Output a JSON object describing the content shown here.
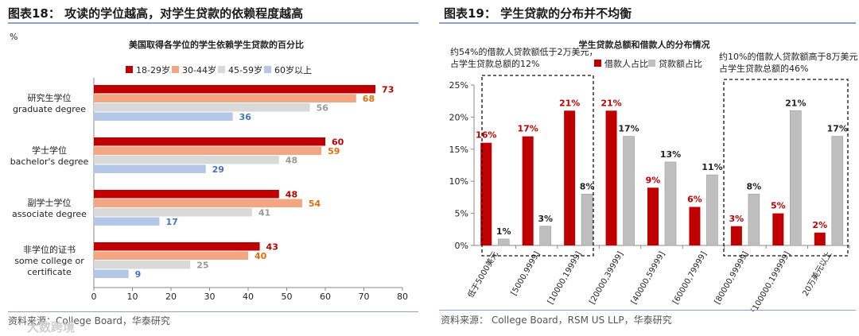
{
  "left": {
    "title": "图表18：  攻读的学位越高，对学生贷款的依赖程度越高",
    "source": "资料来源：College Board，华泰研究",
    "watermark": "大数跨境",
    "chart_data": {
      "type": "bar",
      "orientation": "horizontal",
      "title": "美国取得各学位的学生依赖学生贷款的百分比",
      "ylabel": "%",
      "xlim": [
        0,
        80
      ],
      "xticks": [
        0,
        10,
        20,
        30,
        40,
        50,
        60,
        70,
        80
      ],
      "categories": [
        [
          "研究生学位",
          "graduate degree"
        ],
        [
          "学士学位",
          "bachelor's degree"
        ],
        [
          "副学士学位",
          "associate degree"
        ],
        [
          "非学位的证书",
          "some college or",
          "certificate"
        ]
      ],
      "series": [
        {
          "name": "18-29岁",
          "color": "#c00000",
          "label_color": "#c00000",
          "values": [
            73,
            60,
            48,
            43
          ]
        },
        {
          "name": "30-44岁",
          "color": "#f4a582",
          "label_color": "#e46c0a",
          "values": [
            68,
            59,
            54,
            40
          ]
        },
        {
          "name": "45-59岁",
          "color": "#d9d9d9",
          "label_color": "#999999",
          "values": [
            56,
            48,
            41,
            25
          ]
        },
        {
          "name": "60岁以上",
          "color": "#b4c7e7",
          "label_color": "#4472c4",
          "values": [
            36,
            29,
            17,
            9
          ]
        }
      ],
      "legend": "top",
      "grid": false
    }
  },
  "right": {
    "title": "图表19：  学生贷款的分布并不均衡",
    "source": "资料来源：   College Board，RSM US LLP，华泰研究",
    "chart_data": {
      "type": "bar",
      "title": "学生贷款总额和借款人的分布情况",
      "ylim": [
        0,
        25
      ],
      "yticks": [
        "0%",
        "5%",
        "10%",
        "15%",
        "20%",
        "25%"
      ],
      "categories": [
        "低于5000美元",
        "[5000,9999]",
        "[10000,19999]",
        "[20000,39999]",
        "[40000,59999]",
        "[60000,79999]",
        "[80000,99999]",
        "[100000,199999]",
        "20万美元以上"
      ],
      "series": [
        {
          "name": "借款人占比",
          "color": "#c00000",
          "label_color": "#c00000",
          "values": [
            16,
            17,
            21,
            21,
            9,
            6,
            3,
            5,
            2
          ]
        },
        {
          "name": "贷款额占比",
          "color": "#bfbfbf",
          "label_color": "#222222",
          "values": [
            1,
            3,
            8,
            17,
            13,
            11,
            8,
            21,
            17
          ]
        }
      ],
      "legend": "top",
      "grid": false,
      "annotations": [
        {
          "lines": [
            "约54%的借款人贷款额低于2万美元，",
            "占学生贷款总额的12%"
          ]
        },
        {
          "lines": [
            "约10%的借款人贷款额高于8万美元，",
            "占学生贷款总额的46%"
          ]
        }
      ]
    }
  }
}
